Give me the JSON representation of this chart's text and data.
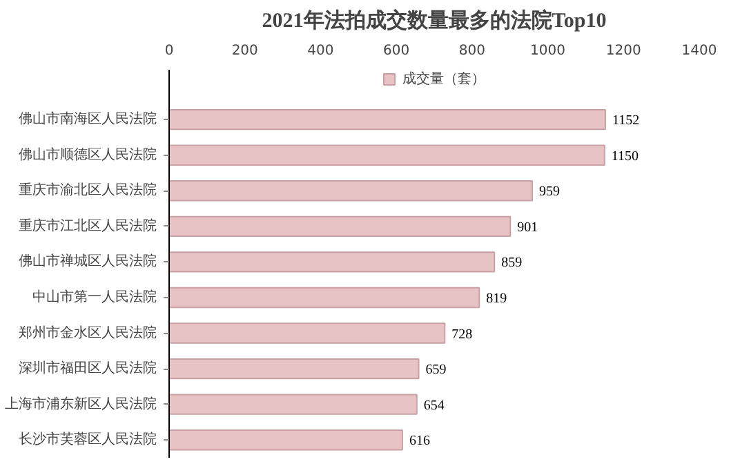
{
  "chart_data": {
    "type": "bar",
    "orientation": "horizontal",
    "title": "2021年法拍成交数量最多的法院Top10",
    "categories": [
      "佛山市南海区人民法院",
      "佛山市顺德区人民法院",
      "重庆市渝北区人民法院",
      "重庆市江北区人民法院",
      "佛山市禅城区人民法院",
      "中山市第一人民法院",
      "郑州市金水区人民法院",
      "深圳市福田区人民法院",
      "上海市浦东新区人民法院",
      "长沙市芙蓉区人民法院"
    ],
    "series": [
      {
        "name": "成交量（套）",
        "color": "#e8c3c6",
        "values": [
          1152,
          1150,
          959,
          901,
          859,
          819,
          728,
          659,
          654,
          616
        ]
      }
    ],
    "xlim": [
      0,
      1400
    ],
    "xticks": [
      0,
      200,
      400,
      600,
      800,
      1000,
      1200,
      1400
    ],
    "data_labels": true,
    "legend": "top",
    "grid": false
  }
}
